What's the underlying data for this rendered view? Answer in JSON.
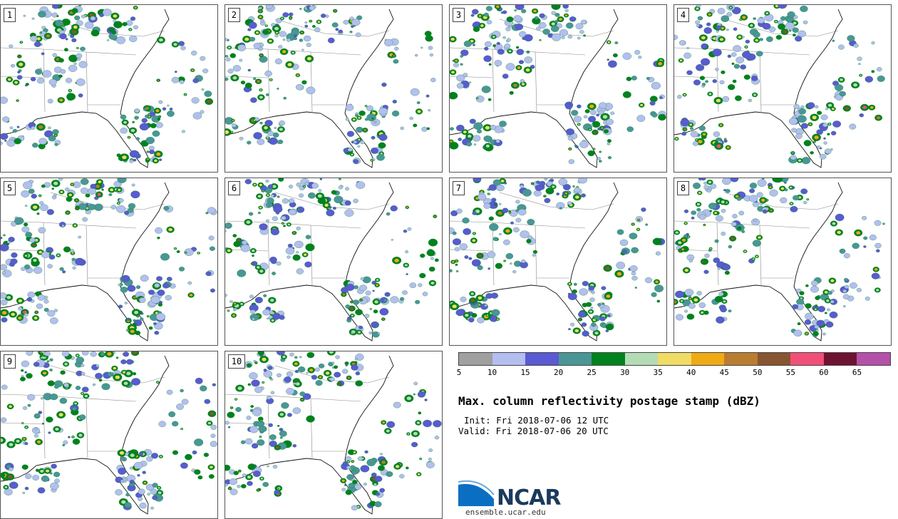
{
  "panels": [
    {
      "label": "1"
    },
    {
      "label": "2"
    },
    {
      "label": "3"
    },
    {
      "label": "4"
    },
    {
      "label": "5"
    },
    {
      "label": "6"
    },
    {
      "label": "7"
    },
    {
      "label": "8"
    },
    {
      "label": "9"
    },
    {
      "label": "10"
    }
  ],
  "colorbar": {
    "colors": [
      "#a0a0a0",
      "#b4bef0",
      "#5a5ad2",
      "#4a9696",
      "#00821e",
      "#b4dcb4",
      "#f0dc64",
      "#f0aa14",
      "#b97d32",
      "#875532",
      "#f05078",
      "#6e1432",
      "#b450aa"
    ],
    "ticks": [
      "5",
      "10",
      "15",
      "20",
      "25",
      "30",
      "35",
      "40",
      "45",
      "50",
      "55",
      "60",
      "65"
    ]
  },
  "title": "Max. column reflectivity postage stamp (dBZ)",
  "init": "Init: Fri 2018-07-06 12 UTC",
  "valid": "Valid: Fri 2018-07-06 20 UTC",
  "logo": {
    "name": "NCAR",
    "url": "ensemble.ucar.edu"
  }
}
